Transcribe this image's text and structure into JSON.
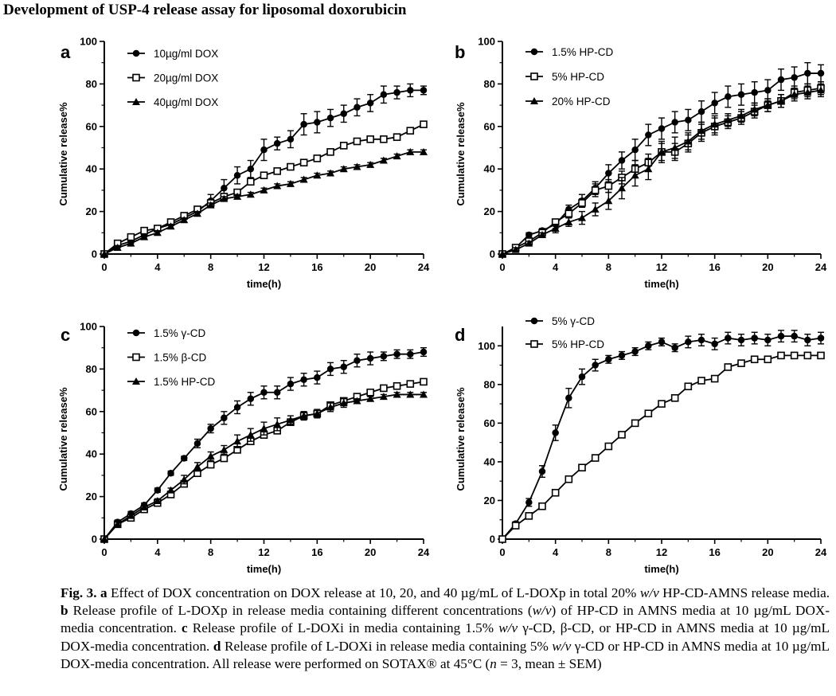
{
  "page": {
    "title": "Development of USP-4 release assay for liposomal doxorubicin"
  },
  "caption": {
    "fig": "Fig. 3.",
    "a_label": "a",
    "a_text": "Effect of DOX concentration on DOX release at 10, 20, and 40 µg/mL of L-DOXp in total 20%",
    "wv1": "w/v",
    "a_text2": "HP-CD-AMNS release media.",
    "b_label": "b",
    "b_text": "Release profile of L-DOXp in release media containing different concentrations (",
    "wv2": "w/v",
    "b_text2": ") of HP-CD in AMNS media at 10 µg/mL DOX-media concentration.",
    "c_label": "c",
    "c_text": "Release profile of L-DOXi in media containing 1.5%",
    "wv3": "w/v",
    "c_text2": "γ-CD, β-CD, or HP-CD in AMNS media at 10 µg/mL DOX-media concentration.",
    "d_label": "d",
    "d_text": "Release profile of L-DOXi in release media containing 5%",
    "wv4": "w/v",
    "d_text2": "γ-CD or HP-CD in AMNS media at 10 µg/mL DOX-media concentration. All release were performed on SOTAX® at 45°C (",
    "n": "n",
    "d_text3": " = 3, mean ± SEM)"
  },
  "chart_data": [
    {
      "panel": "a",
      "type": "line",
      "xlabel": "time(h)",
      "ylabel": "Cumulative release%",
      "xlim": [
        0,
        24
      ],
      "ylim": [
        0,
        100
      ],
      "xticks": [
        0,
        4,
        8,
        12,
        16,
        20,
        24
      ],
      "yticks": [
        0,
        20,
        40,
        60,
        80,
        100
      ],
      "series": [
        {
          "name": "10µg/ml DOX",
          "marker": "circle",
          "x": [
            0,
            1,
            2,
            3,
            4,
            5,
            6,
            7,
            8,
            9,
            10,
            11,
            12,
            13,
            14,
            15,
            16,
            17,
            18,
            19,
            20,
            21,
            22,
            23,
            24
          ],
          "y": [
            0,
            4,
            6,
            9,
            12,
            14,
            17,
            20,
            25,
            31,
            37,
            40,
            49,
            52,
            54,
            61,
            62,
            64,
            66,
            69,
            71,
            75,
            76,
            77,
            77
          ],
          "err": [
            0,
            1,
            1,
            1,
            1,
            2,
            2,
            2,
            3,
            4,
            4,
            4,
            5,
            3,
            4,
            5,
            5,
            4,
            4,
            4,
            4,
            4,
            3,
            3,
            2
          ]
        },
        {
          "name": "20µg/ml DOX",
          "marker": "square",
          "x": [
            0,
            1,
            2,
            3,
            4,
            5,
            6,
            7,
            8,
            9,
            10,
            11,
            12,
            13,
            14,
            15,
            16,
            17,
            18,
            19,
            20,
            21,
            22,
            23,
            24
          ],
          "y": [
            0,
            5,
            8,
            11,
            12,
            15,
            18,
            21,
            24,
            27,
            29,
            34,
            37,
            39,
            41,
            43,
            45,
            48,
            51,
            53,
            54,
            54,
            55,
            58,
            61
          ],
          "err": [
            0,
            1,
            1,
            1,
            1,
            1,
            1,
            1,
            1,
            1,
            1,
            1,
            1,
            1,
            1,
            1,
            1,
            1,
            1,
            1,
            1,
            1,
            1,
            1,
            1
          ]
        },
        {
          "name": "40µg/ml DOX",
          "marker": "triangle",
          "x": [
            0,
            1,
            2,
            3,
            4,
            5,
            6,
            7,
            8,
            9,
            10,
            11,
            12,
            13,
            14,
            15,
            16,
            17,
            18,
            19,
            20,
            21,
            22,
            23,
            24
          ],
          "y": [
            0,
            3,
            5,
            8,
            10,
            13,
            16,
            19,
            23,
            26,
            27,
            28,
            30,
            32,
            33,
            35,
            37,
            38,
            40,
            41,
            42,
            44,
            46,
            48,
            48
          ],
          "err": [
            0,
            1,
            1,
            1,
            1,
            1,
            1,
            1,
            1,
            1,
            1,
            1,
            1,
            1,
            1,
            1,
            1,
            1,
            1,
            1,
            1,
            1,
            1,
            1,
            1
          ]
        }
      ]
    },
    {
      "panel": "b",
      "type": "line",
      "xlabel": "time(h)",
      "ylabel": "Cumulative release%",
      "xlim": [
        0,
        24
      ],
      "ylim": [
        0,
        100
      ],
      "xticks": [
        0,
        4,
        8,
        12,
        16,
        20,
        24
      ],
      "yticks": [
        0,
        20,
        40,
        60,
        80,
        100
      ],
      "series": [
        {
          "name": "1.5% HP-CD",
          "marker": "circle",
          "x": [
            0,
            1,
            2,
            3,
            4,
            5,
            6,
            7,
            8,
            9,
            10,
            11,
            12,
            13,
            14,
            15,
            16,
            17,
            18,
            19,
            20,
            21,
            22,
            23,
            24
          ],
          "y": [
            0,
            3,
            9,
            11,
            14,
            21,
            25,
            31,
            38,
            44,
            49,
            56,
            59,
            62,
            63,
            67,
            71,
            74,
            75,
            76,
            77,
            82,
            83,
            85,
            85
          ],
          "err": [
            0,
            1,
            1,
            1,
            2,
            2,
            3,
            3,
            4,
            4,
            5,
            5,
            5,
            5,
            5,
            5,
            5,
            5,
            5,
            5,
            5,
            5,
            5,
            5,
            4
          ]
        },
        {
          "name": "5% HP-CD",
          "marker": "square",
          "x": [
            0,
            1,
            2,
            3,
            4,
            5,
            6,
            7,
            8,
            9,
            10,
            11,
            12,
            13,
            14,
            15,
            16,
            17,
            18,
            19,
            20,
            21,
            22,
            23,
            24
          ],
          "y": [
            0,
            3,
            6,
            10,
            15,
            19,
            24,
            30,
            32,
            36,
            40,
            43,
            48,
            48,
            52,
            57,
            60,
            62,
            64,
            67,
            70,
            72,
            76,
            77,
            78
          ],
          "err": [
            0,
            1,
            1,
            1,
            1,
            2,
            2,
            3,
            3,
            3,
            4,
            4,
            4,
            4,
            4,
            4,
            4,
            3,
            3,
            3,
            3,
            3,
            3,
            3,
            3
          ]
        },
        {
          "name": "20% HP-CD",
          "marker": "triangle",
          "x": [
            0,
            1,
            2,
            3,
            4,
            5,
            6,
            7,
            8,
            9,
            10,
            11,
            12,
            13,
            14,
            15,
            16,
            17,
            18,
            19,
            20,
            21,
            22,
            23,
            24
          ],
          "y": [
            0,
            2,
            5,
            9,
            12,
            15,
            17,
            21,
            25,
            31,
            37,
            40,
            48,
            50,
            53,
            58,
            61,
            63,
            65,
            68,
            70,
            72,
            75,
            76,
            77
          ],
          "err": [
            0,
            1,
            1,
            1,
            2,
            2,
            3,
            3,
            4,
            5,
            5,
            5,
            5,
            5,
            4,
            4,
            4,
            3,
            3,
            3,
            3,
            3,
            3,
            3,
            3
          ]
        }
      ]
    },
    {
      "panel": "c",
      "type": "line",
      "xlabel": "time(h)",
      "ylabel": "Cumulative release%",
      "xlim": [
        0,
        24
      ],
      "ylim": [
        0,
        100
      ],
      "xticks": [
        0,
        4,
        8,
        12,
        16,
        20,
        24
      ],
      "yticks": [
        0,
        20,
        40,
        60,
        80,
        100
      ],
      "series": [
        {
          "name": "1.5% γ-CD",
          "marker": "circle",
          "x": [
            0,
            1,
            2,
            3,
            4,
            5,
            6,
            7,
            8,
            9,
            10,
            11,
            12,
            13,
            14,
            15,
            16,
            17,
            18,
            19,
            20,
            21,
            22,
            23,
            24
          ],
          "y": [
            0,
            8,
            12,
            16,
            23,
            31,
            38,
            45,
            52,
            57,
            62,
            66,
            69,
            69,
            73,
            75,
            76,
            80,
            81,
            84,
            85,
            86,
            87,
            87,
            88
          ],
          "err": [
            0,
            1,
            1,
            1,
            1,
            1,
            1,
            2,
            2,
            3,
            3,
            3,
            3,
            3,
            3,
            3,
            3,
            3,
            3,
            3,
            3,
            2,
            2,
            2,
            2
          ]
        },
        {
          "name": "1.5% β-CD",
          "marker": "square",
          "x": [
            0,
            1,
            2,
            3,
            4,
            5,
            6,
            7,
            8,
            9,
            10,
            11,
            12,
            13,
            14,
            15,
            16,
            17,
            18,
            19,
            20,
            21,
            22,
            23,
            24
          ],
          "y": [
            0,
            7,
            10,
            14,
            17,
            21,
            26,
            31,
            35,
            38,
            42,
            46,
            49,
            51,
            55,
            58,
            59,
            63,
            65,
            67,
            69,
            71,
            72,
            73,
            74
          ],
          "err": [
            0,
            1,
            1,
            1,
            1,
            1,
            1,
            1,
            1,
            1,
            1,
            1,
            1,
            1,
            1,
            1,
            1,
            1,
            1,
            1,
            1,
            1,
            1,
            1,
            1
          ]
        },
        {
          "name": "1.5% HP-CD",
          "marker": "triangle",
          "x": [
            0,
            1,
            2,
            3,
            4,
            5,
            6,
            7,
            8,
            9,
            10,
            11,
            12,
            13,
            14,
            15,
            16,
            17,
            18,
            19,
            20,
            21,
            22,
            23,
            24
          ],
          "y": [
            0,
            7,
            11,
            15,
            18,
            23,
            28,
            34,
            39,
            42,
            46,
            49,
            52,
            54,
            56,
            58,
            59,
            62,
            64,
            65,
            66,
            67,
            68,
            68,
            68
          ],
          "err": [
            0,
            1,
            1,
            1,
            1,
            1,
            2,
            2,
            2,
            2,
            3,
            3,
            3,
            3,
            2,
            2,
            2,
            2,
            2,
            1,
            1,
            1,
            1,
            1,
            1
          ]
        }
      ]
    },
    {
      "panel": "d",
      "type": "line",
      "xlabel": "time(h)",
      "ylabel": "Cumulative release%",
      "xlim": [
        0,
        24
      ],
      "ylim": [
        0,
        110
      ],
      "xticks": [
        0,
        4,
        8,
        12,
        16,
        20,
        24
      ],
      "yticks": [
        0,
        20,
        40,
        60,
        80,
        100
      ],
      "series": [
        {
          "name": "5% γ-CD",
          "marker": "circle",
          "x": [
            0,
            1,
            2,
            3,
            4,
            5,
            6,
            7,
            8,
            9,
            10,
            11,
            12,
            13,
            14,
            15,
            16,
            17,
            18,
            19,
            20,
            21,
            22,
            23,
            24
          ],
          "y": [
            0,
            8,
            19,
            35,
            55,
            73,
            84,
            90,
            93,
            95,
            97,
            100,
            102,
            99,
            102,
            103,
            101,
            104,
            103,
            104,
            103,
            105,
            105,
            103,
            104
          ],
          "err": [
            0,
            1,
            2,
            3,
            4,
            5,
            4,
            3,
            2,
            2,
            2,
            2,
            2,
            2,
            3,
            3,
            3,
            3,
            3,
            3,
            3,
            3,
            3,
            3,
            3
          ]
        },
        {
          "name": "5% HP-CD",
          "marker": "square",
          "x": [
            0,
            1,
            2,
            3,
            4,
            5,
            6,
            7,
            8,
            9,
            10,
            11,
            12,
            13,
            14,
            15,
            16,
            17,
            18,
            19,
            20,
            21,
            22,
            23,
            24
          ],
          "y": [
            0,
            7,
            12,
            17,
            24,
            31,
            37,
            42,
            48,
            54,
            60,
            65,
            70,
            73,
            79,
            82,
            83,
            89,
            91,
            93,
            93,
            95,
            95,
            95,
            95
          ],
          "err": [
            0,
            1,
            1,
            1,
            1,
            1,
            1,
            1,
            1,
            1,
            1,
            1,
            1,
            1,
            1,
            1,
            1,
            1,
            1,
            1,
            1,
            1,
            1,
            1,
            1
          ]
        }
      ]
    }
  ]
}
